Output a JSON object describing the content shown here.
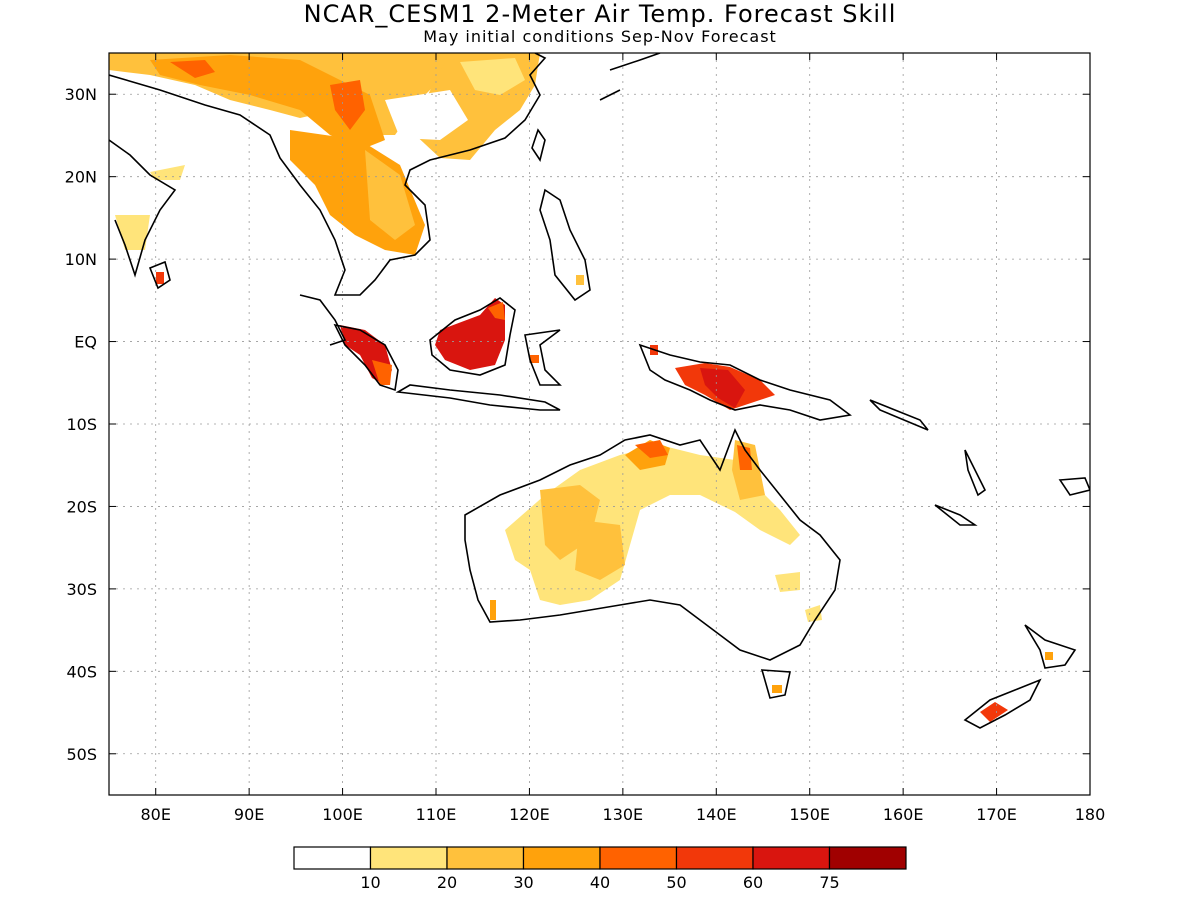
{
  "title": "NCAR_CESM1 2-Meter Air Temp. Forecast Skill",
  "subtitle": "May initial conditions  Sep-Nov Forecast",
  "map": {
    "lon_range": [
      75,
      180
    ],
    "lat_range": [
      -55,
      35
    ],
    "gridlines": "dotted",
    "lat_ticks": [
      {
        "value": 30,
        "label": "30N"
      },
      {
        "value": 20,
        "label": "20N"
      },
      {
        "value": 10,
        "label": "10N"
      },
      {
        "value": 0,
        "label": "EQ"
      },
      {
        "value": -10,
        "label": "10S"
      },
      {
        "value": -20,
        "label": "20S"
      },
      {
        "value": -30,
        "label": "30S"
      },
      {
        "value": -40,
        "label": "40S"
      },
      {
        "value": -50,
        "label": "50S"
      }
    ],
    "lon_ticks": [
      {
        "value": 80,
        "label": "80E"
      },
      {
        "value": 90,
        "label": "90E"
      },
      {
        "value": 100,
        "label": "100E"
      },
      {
        "value": 110,
        "label": "110E"
      },
      {
        "value": 120,
        "label": "120E"
      },
      {
        "value": 130,
        "label": "130E"
      },
      {
        "value": 140,
        "label": "140E"
      },
      {
        "value": 150,
        "label": "150E"
      },
      {
        "value": 160,
        "label": "160E"
      },
      {
        "value": 170,
        "label": "170E"
      },
      {
        "value": 180,
        "label": "180"
      }
    ]
  },
  "colorbar": {
    "colors": [
      "#ffffff",
      "#ffe47a",
      "#ffc13c",
      "#ffa20c",
      "#ff6200",
      "#f2380a",
      "#d9150f",
      "#a00000"
    ],
    "labels": [
      "10",
      "20",
      "30",
      "40",
      "50",
      "60",
      "75"
    ]
  }
}
